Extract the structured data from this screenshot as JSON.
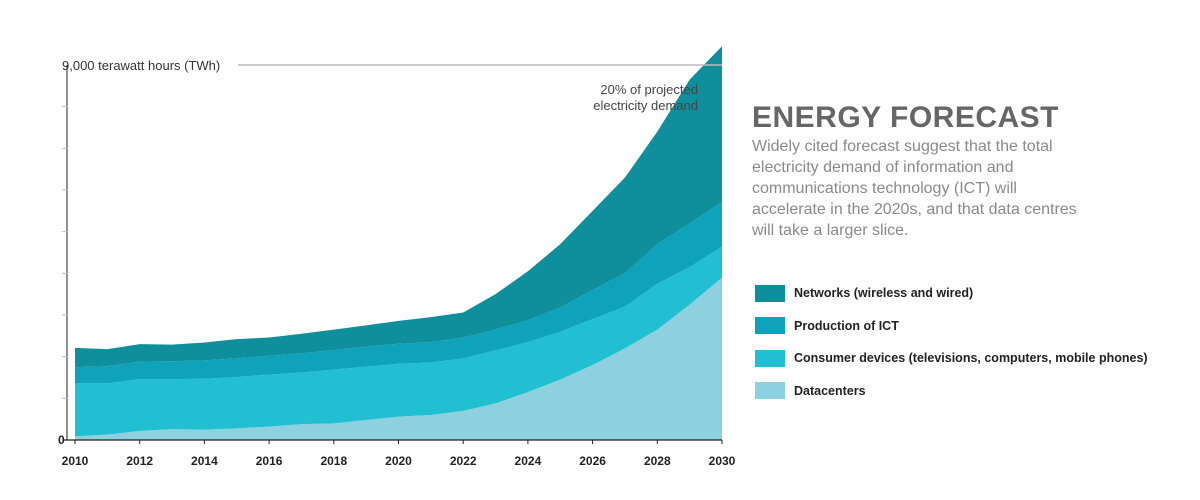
{
  "chart_data": {
    "type": "area",
    "stacked": true,
    "x": [
      2010,
      2011,
      2012,
      2013,
      2014,
      2015,
      2016,
      2017,
      2018,
      2019,
      2020,
      2021,
      2022,
      2023,
      2024,
      2025,
      2026,
      2027,
      2028,
      2029,
      2030
    ],
    "xticks": [
      "2010",
      "2012",
      "2014",
      "2016",
      "2018",
      "2020",
      "2022",
      "2024",
      "2026",
      "2028",
      "2030"
    ],
    "ylim": [
      0,
      9000
    ],
    "yticks_labeled": [
      {
        "value": 0,
        "label": "0"
      },
      {
        "value": 9000,
        "label": "9,000 terawatt hours (TWh)"
      }
    ],
    "series": [
      {
        "name": "Datacenters",
        "color": "#8dd0df",
        "values": [
          90,
          130,
          220,
          260,
          250,
          280,
          320,
          380,
          400,
          480,
          560,
          600,
          700,
          880,
          1150,
          1450,
          1800,
          2200,
          2650,
          3250,
          3900
        ]
      },
      {
        "name": "Consumer devices (televisions, computers, mobile phones)",
        "color": "#22bfd3",
        "values": [
          1270,
          1230,
          1240,
          1200,
          1220,
          1230,
          1250,
          1240,
          1290,
          1280,
          1270,
          1260,
          1260,
          1270,
          1200,
          1150,
          1100,
          1000,
          1100,
          900,
          740
        ]
      },
      {
        "name": "Production of ICT",
        "color": "#0ea2bb",
        "values": [
          390,
          410,
          420,
          430,
          440,
          450,
          450,
          460,
          470,
          480,
          480,
          490,
          500,
          500,
          520,
          580,
          700,
          800,
          950,
          1050,
          1080
        ]
      },
      {
        "name": "Networks (wireless and wired)",
        "color": "#0e8f9b",
        "values": [
          460,
          410,
          420,
          400,
          430,
          460,
          440,
          470,
          490,
          510,
          550,
          600,
          600,
          850,
          1180,
          1520,
          1900,
          2300,
          2700,
          3450,
          3730
        ]
      }
    ],
    "annotation": [
      "20% of projected",
      "electricity demand"
    ],
    "grid": false,
    "legend_position": "right"
  },
  "panel": {
    "title": "ENERGY FORECAST",
    "lines": [
      "Widely cited forecast suggest that the total",
      "electricity demand of information and",
      "communications technology (ICT) will",
      "accelerate in the 2020s, and that data centres",
      "will take a larger slice."
    ]
  },
  "legend": [
    {
      "label": "Networks (wireless and wired)",
      "color": "#0e8f9b"
    },
    {
      "label": "Production of ICT",
      "color": "#0ea2bb"
    },
    {
      "label": "Consumer devices (televisions, computers, mobile phones)",
      "color": "#22bfd3"
    },
    {
      "label": "Datacenters",
      "color": "#8dd0df"
    }
  ]
}
